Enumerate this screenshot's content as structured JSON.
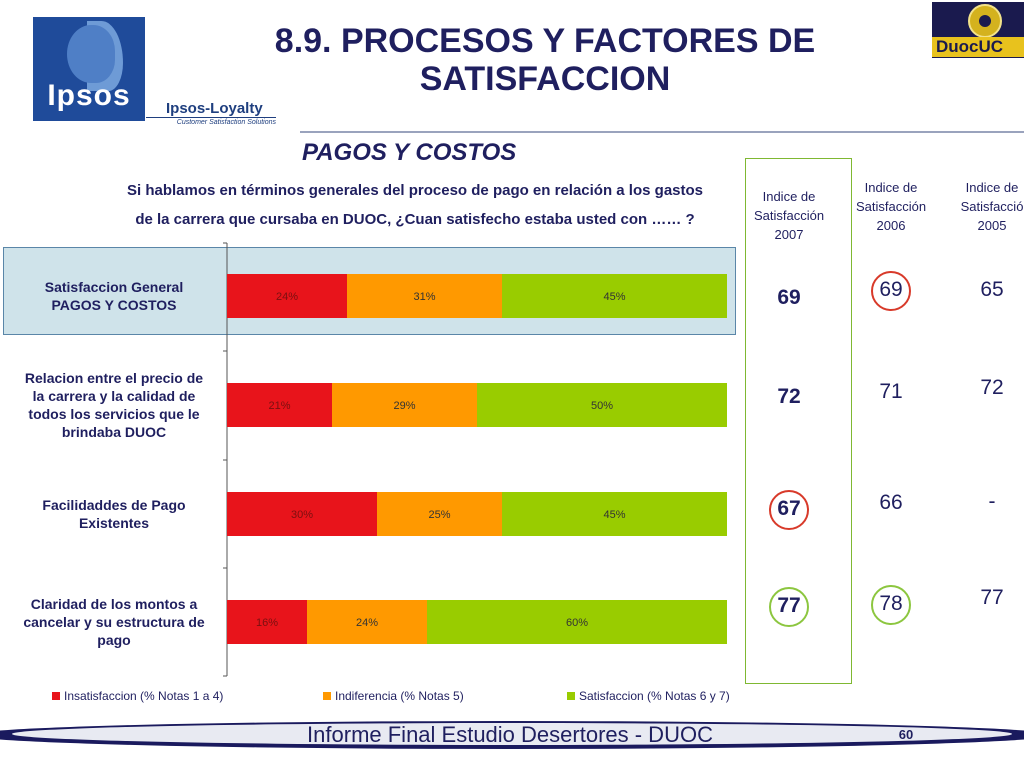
{
  "header": {
    "title_line1": "8.9. PROCESOS Y FACTORES DE",
    "title_line2": "SATISFACCION",
    "logo_left": "Ipsos",
    "logo_left_sub": "Ipsos-Loyalty",
    "logo_left_tag": "Customer Satisfaction Solutions",
    "logo_right": "DuocUC"
  },
  "section": {
    "title": "PAGOS Y COSTOS",
    "question_line1": "Si hablamos en términos generales del proceso de pago en relación a los gastos",
    "question_line2": "de la carrera que cursaba en DUOC, ¿Cuan satisfecho estaba usted con …… ?"
  },
  "chart_data": {
    "type": "bar",
    "orientation": "horizontal",
    "stacked": true,
    "percent": true,
    "categories": [
      [
        "Satisfaccion General",
        "PAGOS Y COSTOS"
      ],
      [
        "Relacion entre el precio de",
        "la carrera y la calidad de",
        "todos los servicios que le",
        "brindaba DUOC"
      ],
      [
        "Facilidaddes de Pago",
        "Existentes"
      ],
      [
        "Claridad de los montos a",
        "cancelar y su estructura de",
        "pago"
      ]
    ],
    "series": [
      {
        "name": "Insatisfaccion (% Notas 1 a 4)",
        "color": "#e8141b",
        "values": [
          24,
          21,
          30,
          16
        ],
        "labels": [
          "24%",
          "21%",
          "30%",
          "16%"
        ]
      },
      {
        "name": "Indiferencia (% Notas 5)",
        "color": "#ff9900",
        "values": [
          31,
          29,
          25,
          24
        ],
        "labels": [
          "31%",
          "29%",
          "25%",
          "24%"
        ]
      },
      {
        "name": "Satisfaccion (% Notas 6 y 7)",
        "color": "#99cc00",
        "values": [
          45,
          50,
          45,
          60
        ],
        "labels": [
          "45%",
          "50%",
          "45%",
          "60%"
        ]
      }
    ],
    "xlim": [
      0,
      100
    ],
    "highlight_category": 0,
    "legend_position": "bottom"
  },
  "indices": {
    "col2007": {
      "header": [
        "Indice de",
        "Satisfacción",
        "2007"
      ],
      "values": [
        "69",
        "72",
        "67",
        "77"
      ],
      "circled": [
        null,
        null,
        "red",
        "green"
      ]
    },
    "col2006": {
      "header": [
        "Indice de",
        "Satisfacción",
        "2006"
      ],
      "values": [
        "69",
        "71",
        "66",
        "78"
      ],
      "circled": [
        "red",
        null,
        null,
        "green"
      ]
    },
    "col2005": {
      "header": [
        "Indice de",
        "Satisfacció",
        "2005"
      ],
      "values": [
        "65",
        "72",
        "-",
        "77"
      ],
      "circled": [
        null,
        null,
        null,
        null
      ]
    }
  },
  "footer": {
    "text": "Informe Final Estudio Desertores - DUOC",
    "page": "60"
  }
}
